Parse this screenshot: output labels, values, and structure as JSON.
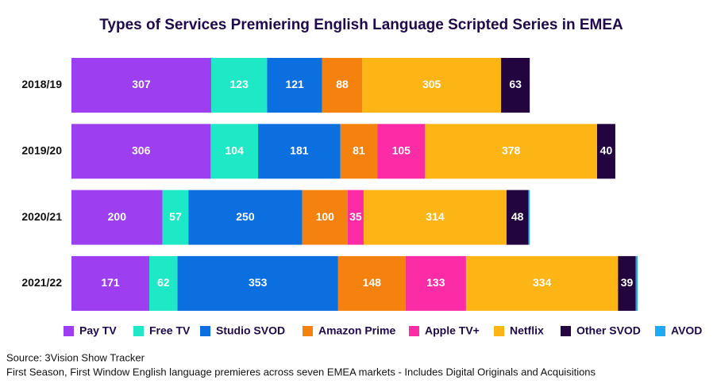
{
  "chart_data": {
    "type": "bar",
    "orientation": "horizontal",
    "stacked": true,
    "title": "Types of Services Premiering English Language Scripted Series in EMEA",
    "categories": [
      "2018/19",
      "2019/20",
      "2020/21",
      "2021/22"
    ],
    "series": [
      {
        "name": "Pay TV",
        "color": "#9d3ef0",
        "values": [
          307,
          306,
          200,
          171
        ]
      },
      {
        "name": "Free TV",
        "color": "#1ee8c6",
        "values": [
          123,
          104,
          57,
          62
        ]
      },
      {
        "name": "Studio SVOD",
        "color": "#0c6fe0",
        "values": [
          121,
          181,
          250,
          353
        ]
      },
      {
        "name": "Amazon Prime",
        "color": "#f5820f",
        "values": [
          88,
          81,
          100,
          148
        ]
      },
      {
        "name": "Apple TV+",
        "color": "#fc2ca6",
        "values": [
          0,
          105,
          35,
          133
        ]
      },
      {
        "name": "Netflix",
        "color": "#fdb515",
        "values": [
          305,
          378,
          314,
          334
        ]
      },
      {
        "name": "Other SVOD",
        "color": "#22053f",
        "values": [
          63,
          40,
          48,
          39
        ]
      },
      {
        "name": "AVOD",
        "color": "#20a8f0",
        "values": [
          0,
          0,
          3,
          4
        ]
      }
    ]
  },
  "footer": {
    "source": "Source: 3Vision Show Tracker",
    "note": "First Season, First Window English language premieres across seven EMEA markets - Includes Digital Originals and Acquisitions"
  }
}
